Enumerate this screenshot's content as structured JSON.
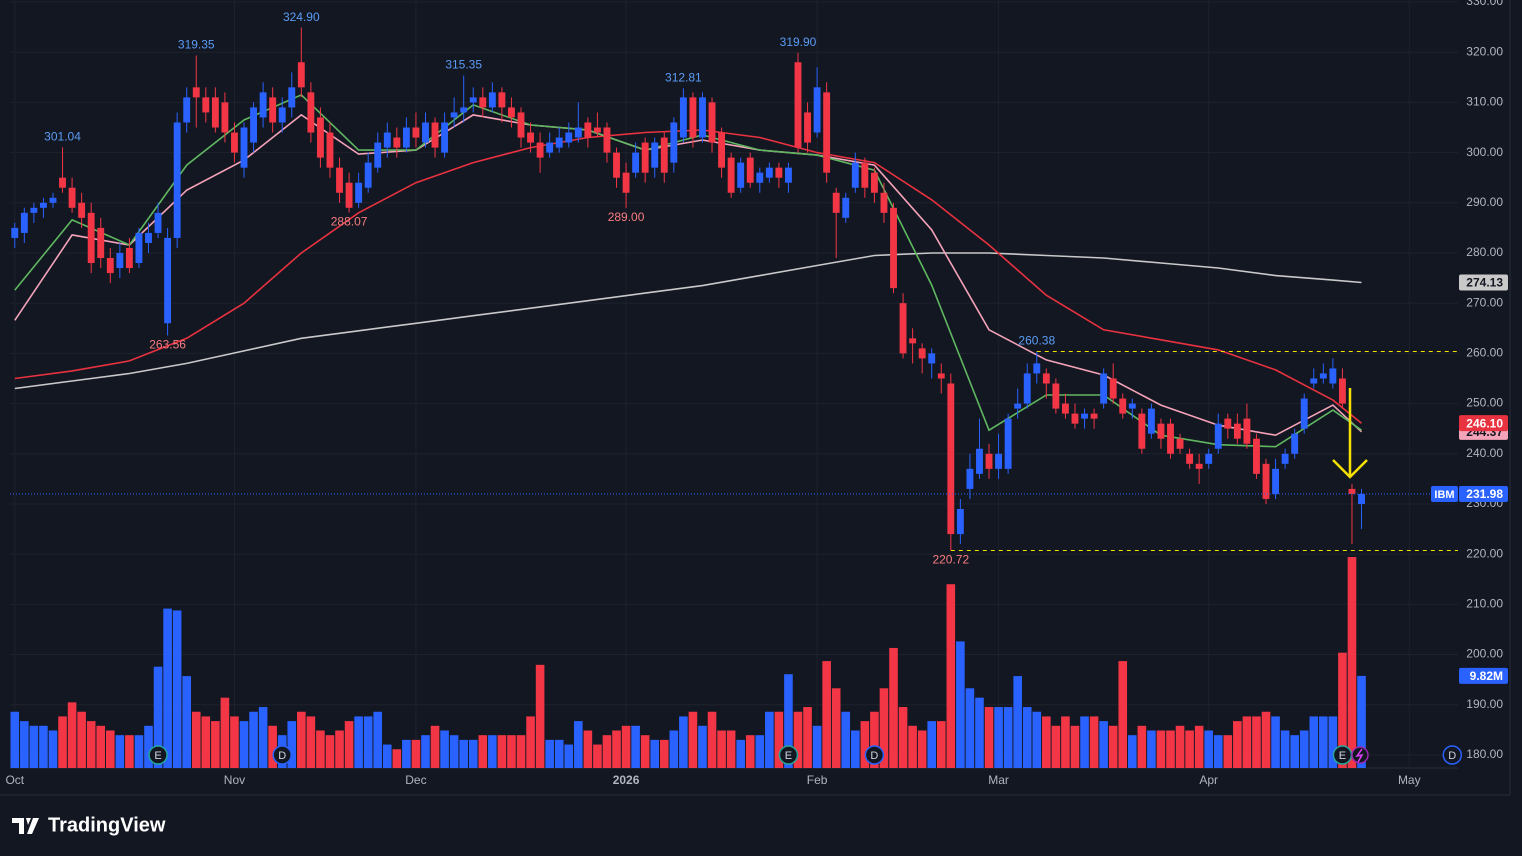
{
  "chart_data": {
    "type": "candlestick",
    "symbol": "IBM",
    "grid": true,
    "xlim": [
      -0.5,
      151.1
    ],
    "xticks": [
      {
        "value": 0,
        "label": "Oct"
      },
      {
        "value": 23,
        "label": "Nov"
      },
      {
        "value": 42,
        "label": "Dec"
      },
      {
        "value": 64,
        "label": "2026"
      },
      {
        "value": 84,
        "label": "Feb"
      },
      {
        "value": 103,
        "label": "Mar"
      },
      {
        "value": 125,
        "label": "Apr"
      },
      {
        "value": 146,
        "label": "May"
      }
    ],
    "ylim": [
      177.4,
      330.4
    ],
    "yticks": [
      {
        "value": 180,
        "label": "180.00"
      },
      {
        "value": 190,
        "label": "190.00"
      },
      {
        "value": 200,
        "label": "200.00"
      },
      {
        "value": 210,
        "label": "210.00"
      },
      {
        "value": 220,
        "label": "220.00"
      },
      {
        "value": 230,
        "label": "230.00"
      },
      {
        "value": 240,
        "label": "240.00"
      },
      {
        "value": 250,
        "label": "250.00"
      },
      {
        "value": 260,
        "label": "260.00"
      },
      {
        "value": 270,
        "label": "270.00"
      },
      {
        "value": 280,
        "label": "280.00"
      },
      {
        "value": 290,
        "label": "290.00"
      },
      {
        "value": 300,
        "label": "300.00"
      },
      {
        "value": 310,
        "label": "310.00"
      },
      {
        "value": 320,
        "label": "320.00"
      },
      {
        "value": 330,
        "label": "330.00"
      }
    ],
    "up_color": "#2962ff",
    "down_color": "#f23645",
    "x": [
      0,
      1,
      2,
      3,
      4,
      5,
      6,
      7,
      8,
      9,
      10,
      11,
      12,
      13,
      14,
      15,
      16,
      17,
      18,
      19,
      20,
      21,
      22,
      23,
      24,
      25,
      26,
      27,
      28,
      29,
      30,
      31,
      32,
      33,
      34,
      35,
      36,
      37,
      38,
      39,
      40,
      41,
      42,
      43,
      44,
      45,
      46,
      47,
      48,
      49,
      50,
      51,
      52,
      53,
      54,
      55,
      56,
      57,
      58,
      59,
      60,
      61,
      62,
      63,
      64,
      65,
      66,
      67,
      68,
      69,
      70,
      71,
      72,
      73,
      74,
      75,
      76,
      77,
      78,
      79,
      80,
      81,
      82,
      83,
      84,
      85,
      86,
      87,
      88,
      89,
      90,
      91,
      92,
      93,
      94,
      95,
      96,
      97,
      98,
      99,
      100,
      101,
      102,
      103,
      104,
      105,
      106,
      107,
      108,
      109,
      110,
      111,
      112,
      113,
      114,
      115,
      116,
      117,
      118,
      119,
      120,
      121,
      122,
      123,
      124,
      125,
      126,
      127,
      128,
      129,
      130,
      131,
      132,
      133,
      134,
      135,
      136,
      137,
      138,
      139,
      140,
      141
    ],
    "open": [
      283,
      284,
      288,
      289,
      290,
      295,
      293,
      290,
      288,
      285,
      279,
      277,
      281,
      278,
      282,
      284,
      266,
      283,
      306,
      313,
      311,
      311,
      310,
      304,
      297,
      302,
      307,
      311,
      306,
      309,
      318,
      312,
      307,
      304,
      297,
      294,
      290,
      293,
      297,
      301,
      303,
      301,
      305,
      302,
      306,
      300,
      307,
      308,
      310,
      311,
      309,
      312,
      309,
      308,
      304,
      302,
      300,
      301,
      302,
      303,
      306,
      305,
      305,
      300,
      296,
      296,
      302,
      297,
      303,
      298,
      303,
      311,
      303,
      310,
      304,
      299,
      293,
      299,
      294,
      295,
      297,
      294,
      318,
      308,
      304,
      312,
      292,
      287,
      293,
      298,
      296,
      292,
      289,
      270,
      263,
      261,
      258,
      256,
      254,
      224,
      233,
      236,
      240,
      237,
      237,
      249,
      250,
      256,
      256,
      254,
      250,
      248,
      247,
      248,
      250,
      255,
      251,
      249,
      248,
      244,
      246,
      246,
      243,
      240,
      238,
      238,
      241,
      247,
      246,
      247,
      243,
      238,
      232,
      238,
      240,
      245,
      254,
      255,
      254,
      255,
      233,
      230
    ],
    "high": [
      286,
      289,
      290,
      291,
      292,
      301.04,
      295,
      292,
      290,
      287,
      281,
      282,
      283,
      285,
      286,
      290,
      285,
      308,
      313,
      319.35,
      313,
      313,
      312,
      306,
      306,
      310,
      314,
      313,
      311,
      316,
      324.9,
      314,
      309,
      306,
      299,
      296,
      296,
      300,
      304,
      306,
      305,
      307,
      308,
      308,
      307,
      308,
      311,
      315.35,
      313,
      313,
      314,
      313,
      311,
      309,
      306,
      304,
      304,
      305,
      306,
      310,
      307,
      308,
      306,
      301,
      298,
      302,
      303,
      303,
      304,
      307,
      312.81,
      312,
      312,
      311,
      305,
      300,
      299,
      300,
      297,
      298,
      298,
      298,
      319.9,
      310,
      317,
      314,
      293,
      292,
      300,
      299,
      297,
      294,
      290,
      272,
      265,
      262,
      261,
      258,
      256,
      231,
      240,
      247,
      242,
      244,
      248,
      253,
      258,
      260.38,
      257,
      255,
      252,
      250,
      249,
      249,
      257,
      258,
      252,
      251,
      249,
      250,
      247,
      247,
      244,
      241,
      240,
      241,
      248,
      248,
      248,
      250,
      244,
      239,
      239,
      241,
      245,
      252,
      257,
      258,
      259,
      257,
      234,
      233
    ],
    "low": [
      281,
      282,
      286,
      287,
      289,
      292,
      288,
      285,
      276,
      277,
      274,
      275,
      276,
      277,
      280,
      283,
      263.56,
      281,
      304,
      305,
      306,
      304,
      302,
      298,
      295,
      300,
      305,
      304,
      304,
      307,
      311,
      302,
      297,
      295,
      290,
      288.07,
      289,
      292,
      296,
      299,
      299,
      300,
      301,
      301,
      299,
      299,
      305,
      306,
      308,
      307,
      308,
      306,
      305,
      301,
      300,
      296,
      299,
      300,
      301,
      302,
      301,
      303,
      298,
      293,
      289,
      295,
      294,
      295,
      294,
      296,
      302,
      301,
      302,
      300,
      295,
      291,
      292,
      293,
      292,
      294,
      293,
      292,
      300,
      300,
      303,
      294,
      279,
      286,
      292,
      291,
      290,
      286,
      272,
      259,
      258,
      256,
      255,
      252,
      220.72,
      222,
      231,
      235,
      235,
      235,
      236,
      247,
      249,
      254,
      251,
      248,
      247,
      245,
      245,
      245,
      249,
      250,
      247,
      247,
      240,
      243,
      241,
      239,
      240,
      237,
      234,
      237,
      240,
      243,
      242,
      241,
      235,
      230,
      231,
      237,
      239,
      244,
      253,
      254,
      253,
      249,
      222,
      225
    ],
    "close": [
      285,
      288,
      289,
      290,
      291,
      293,
      289,
      287,
      278,
      279,
      276,
      280,
      277,
      284,
      284,
      288,
      283,
      306,
      311,
      311,
      308,
      305,
      304,
      300,
      305,
      309,
      312,
      306,
      309,
      313,
      313,
      304,
      299,
      297,
      292,
      289,
      294,
      298,
      302,
      304,
      301,
      305,
      303,
      306,
      301,
      306,
      308,
      309,
      311,
      309,
      312,
      309,
      307,
      303,
      302,
      299,
      302,
      303,
      304,
      305,
      303,
      304,
      300,
      295,
      292,
      300,
      296,
      302,
      296,
      306,
      311,
      303,
      311,
      302,
      297,
      292,
      298,
      294,
      296,
      297,
      295,
      297,
      301,
      302,
      313,
      296,
      288,
      291,
      298,
      293,
      292,
      288,
      273,
      260,
      262,
      259,
      260,
      255,
      224,
      229,
      237,
      241,
      237,
      240,
      247,
      250,
      256,
      258,
      254,
      249,
      248,
      246,
      248,
      247,
      256,
      251,
      248,
      250,
      241,
      249,
      243,
      240,
      241,
      238,
      237,
      240,
      246,
      245,
      243,
      242,
      236,
      231,
      237,
      240,
      244,
      251,
      255,
      256,
      257,
      250,
      232,
      231.98
    ],
    "volume": {
      "values": [
        6,
        5,
        4.5,
        4.5,
        4,
        5.5,
        7,
        6,
        5,
        4.5,
        4,
        3.5,
        3.5,
        3.5,
        4.5,
        10.8,
        17,
        16.8,
        9.8,
        6,
        5.5,
        5,
        7.5,
        5.5,
        5,
        6,
        6.5,
        4.5,
        3.5,
        5,
        6,
        5.5,
        4,
        3.5,
        4,
        5,
        5.5,
        5.5,
        6,
        2.5,
        2,
        3,
        3,
        3.5,
        4.5,
        4,
        3.5,
        3,
        3,
        3.5,
        3.5,
        3.5,
        3.5,
        3.5,
        5.5,
        11,
        3,
        3,
        2.5,
        5,
        4,
        2.5,
        3.5,
        4,
        4.5,
        4.5,
        3.5,
        3,
        3,
        4,
        5.5,
        6,
        4.5,
        6,
        4,
        4,
        3,
        3.5,
        3.5,
        6,
        6,
        10,
        6,
        6.5,
        4.5,
        11.4,
        8.5,
        6,
        4,
        5,
        6,
        8.5,
        12.8,
        6.5,
        4.5,
        4,
        5,
        5,
        19.6,
        13.5,
        8.5,
        7.5,
        6.5,
        6.5,
        6.5,
        9.8,
        6.5,
        6,
        5.5,
        4.5,
        5.5,
        4.5,
        5.5,
        5.5,
        5,
        4.5,
        11.4,
        3.5,
        4.5,
        4,
        4,
        4,
        4.5,
        4,
        4.5,
        4,
        3.5,
        3.5,
        5,
        5.5,
        5.5,
        6,
        5.5,
        4,
        3.5,
        4,
        5.5,
        5.5,
        5.5,
        12.3,
        22.5,
        9.82
      ],
      "value_labels": [
        null,
        null,
        null,
        null,
        null,
        null,
        null,
        null,
        null,
        null,
        null,
        null,
        null,
        null,
        null,
        null,
        null,
        null,
        null,
        null,
        null,
        null,
        null,
        null,
        null,
        null,
        null,
        null,
        null,
        null,
        null,
        null,
        null,
        null,
        null,
        null,
        null,
        null,
        null,
        null,
        null,
        null,
        null,
        null,
        null,
        null,
        null,
        null,
        null,
        null,
        null,
        null,
        null,
        null,
        null,
        null,
        null,
        null,
        null,
        null,
        null,
        null,
        null,
        null,
        null,
        null,
        null,
        null,
        null,
        null,
        null,
        null,
        null,
        null,
        null,
        null,
        null,
        null,
        null,
        null,
        null,
        null,
        null,
        null,
        null,
        null,
        null,
        null,
        null,
        null,
        null,
        null,
        null,
        null,
        null,
        null,
        null,
        null,
        null,
        null,
        null,
        null,
        null,
        null,
        null,
        null,
        null,
        null,
        null,
        null,
        null,
        null,
        null,
        null,
        null,
        null,
        null,
        null,
        null,
        null,
        null,
        null,
        null,
        null,
        null,
        null,
        null,
        null,
        null,
        null,
        null,
        null,
        null,
        null,
        null,
        null,
        null,
        null,
        null,
        null,
        null,
        "9.82M"
      ]
    },
    "lines": [
      {
        "color": "#c9c9c9",
        "tag": true,
        "tag_text": "#131722",
        "x": [
          0,
          6,
          12,
          18,
          24,
          30,
          36,
          42,
          48,
          54,
          60,
          66,
          72,
          78,
          84,
          90,
          96,
          102,
          108,
          114,
          120,
          126,
          132,
          138,
          141
        ],
        "values": [
          253,
          254.5,
          256,
          258,
          260.5,
          263,
          264.5,
          266,
          267.5,
          269,
          270.5,
          272,
          273.5,
          275.5,
          277.5,
          279.5,
          280,
          280,
          279.5,
          279,
          278,
          277,
          275.5,
          274.6,
          274.13
        ]
      },
      {
        "color": "#e8323f",
        "tag": true,
        "tag_text": "#ffffff",
        "x": [
          0,
          6,
          12,
          18,
          24,
          30,
          36,
          42,
          48,
          54,
          60,
          66,
          72,
          78,
          84,
          90,
          96,
          102,
          108,
          114,
          120,
          126,
          132,
          138,
          141
        ],
        "values": [
          255,
          256.5,
          258.5,
          263,
          270,
          280,
          288,
          294,
          298,
          301,
          303,
          304,
          304.5,
          303,
          300,
          298,
          290.6,
          281.6,
          271.6,
          264.7,
          262.7,
          260.7,
          256.7,
          250.7,
          246.1
        ],
        "value_labels": [
          null,
          null,
          null,
          null,
          null,
          null,
          null,
          null,
          null,
          null,
          null,
          null,
          null,
          null,
          null,
          null,
          null,
          null,
          null,
          null,
          null,
          null,
          null,
          null,
          "246.10"
        ]
      },
      {
        "color": "#f4a3b8",
        "tag": true,
        "tag_text": "#131722",
        "x": [
          0,
          6,
          12,
          18,
          24,
          30,
          36,
          42,
          48,
          54,
          60,
          66,
          72,
          78,
          84,
          90,
          96,
          102,
          108,
          114,
          120,
          126,
          132,
          138,
          141
        ],
        "values": [
          266.6,
          283.6,
          281.6,
          292.5,
          298.5,
          307.5,
          299.7,
          300.5,
          307.5,
          305.5,
          304.5,
          300.5,
          302.5,
          300.5,
          299.5,
          297.5,
          284.6,
          264.7,
          258.7,
          255.7,
          249.7,
          245.7,
          243.7,
          249.7,
          244.37
        ]
      },
      {
        "color": "#5fb760",
        "tag": false,
        "x": [
          0,
          6,
          12,
          18,
          24,
          30,
          36,
          42,
          48,
          54,
          60,
          66,
          72,
          78,
          84,
          90,
          96,
          102,
          108,
          114,
          120,
          126,
          132,
          138,
          141
        ],
        "values": [
          272.6,
          286.6,
          281.6,
          297.5,
          306.5,
          311.5,
          300.5,
          300.5,
          309.5,
          305.5,
          304.5,
          300.5,
          303.5,
          300.5,
          299.5,
          296.5,
          273.6,
          244.7,
          251.7,
          251.7,
          243.7,
          241.8,
          241.4,
          248.7,
          244.7
        ]
      }
    ],
    "annotations": [
      {
        "x": 5,
        "value": 301.04,
        "label": "301.04",
        "position": "above",
        "color": "#5b9cf6",
        "hline": false
      },
      {
        "x": 19,
        "value": 319.35,
        "label": "319.35",
        "position": "above",
        "color": "#5b9cf6",
        "hline": false
      },
      {
        "x": 30,
        "value": 324.9,
        "label": "324.90",
        "position": "above",
        "color": "#5b9cf6",
        "hline": false
      },
      {
        "x": 47,
        "value": 315.35,
        "label": "315.35",
        "position": "above",
        "color": "#5b9cf6",
        "hline": false
      },
      {
        "x": 70,
        "value": 312.81,
        "label": "312.81",
        "position": "above",
        "color": "#5b9cf6",
        "hline": false
      },
      {
        "x": 82,
        "value": 319.9,
        "label": "319.90",
        "position": "above",
        "color": "#5b9cf6",
        "hline": false
      },
      {
        "x": 107,
        "value": 260.38,
        "label": "260.38",
        "position": "above",
        "color": "#5b9cf6",
        "hline": true
      },
      {
        "x": 16,
        "value": 263.56,
        "label": "263.56",
        "position": "below",
        "color": "#f77c80",
        "hline": false
      },
      {
        "x": 35,
        "value": 288.07,
        "label": "288.07",
        "position": "below",
        "color": "#f77c80",
        "hline": false
      },
      {
        "x": 64,
        "value": 289,
        "label": "289.00",
        "position": "below",
        "color": "#f77c80",
        "hline": false
      },
      {
        "x": 98,
        "value": 220.72,
        "label": "220.72",
        "position": "below",
        "color": "#f77c80",
        "hline": true
      }
    ],
    "events": [
      {
        "x": 15,
        "label": "E",
        "color": "#26a69a"
      },
      {
        "x": 28,
        "label": "D",
        "color": "#2962ff"
      },
      {
        "x": 81,
        "label": "E",
        "color": "#26a69a"
      },
      {
        "x": 90,
        "label": "D",
        "color": "#2962ff"
      },
      {
        "x": 139,
        "label": "E",
        "color": "#26a69a"
      },
      {
        "x": 150.5,
        "label": "D",
        "color": "#2962ff"
      }
    ]
  },
  "footer": {
    "brand": "TradingView"
  }
}
